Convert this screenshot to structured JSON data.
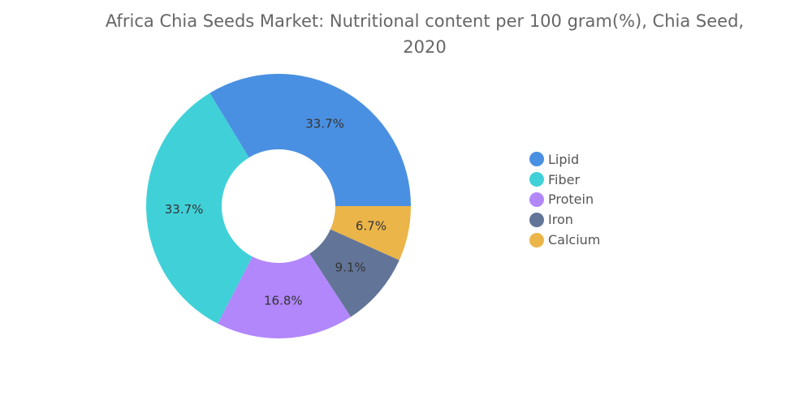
{
  "chart_data": {
    "type": "pie",
    "title": "Africa Chia Seeds Market: Nutritional content per 100 gram(%), Chia Seed, 2020",
    "title_lines": [
      "Africa Chia Seeds Market: Nutritional content per 100 gram(%), Chia Seed,",
      "2020"
    ],
    "donut": true,
    "legend_position": "right",
    "slices": [
      {
        "name": "Lipid",
        "value": 33.7,
        "label": "33.7%",
        "color": "#4a90e2"
      },
      {
        "name": "Calcium",
        "value": 6.7,
        "label": "6.7%",
        "color": "#ebb549"
      },
      {
        "name": "Iron",
        "value": 9.1,
        "label": "9.1%",
        "color": "#627598"
      },
      {
        "name": "Protein",
        "value": 16.8,
        "label": "16.8%",
        "color": "#b287fb"
      },
      {
        "name": "Fiber",
        "value": 33.7,
        "label": "33.7%",
        "color": "#40d1d8"
      }
    ],
    "legend": [
      {
        "name": "Lipid",
        "color": "#4a90e2"
      },
      {
        "name": "Fiber",
        "color": "#40d1d8"
      },
      {
        "name": "Protein",
        "color": "#b287fb"
      },
      {
        "name": "Iron",
        "color": "#627598"
      },
      {
        "name": "Calcium",
        "color": "#ebb549"
      }
    ]
  }
}
